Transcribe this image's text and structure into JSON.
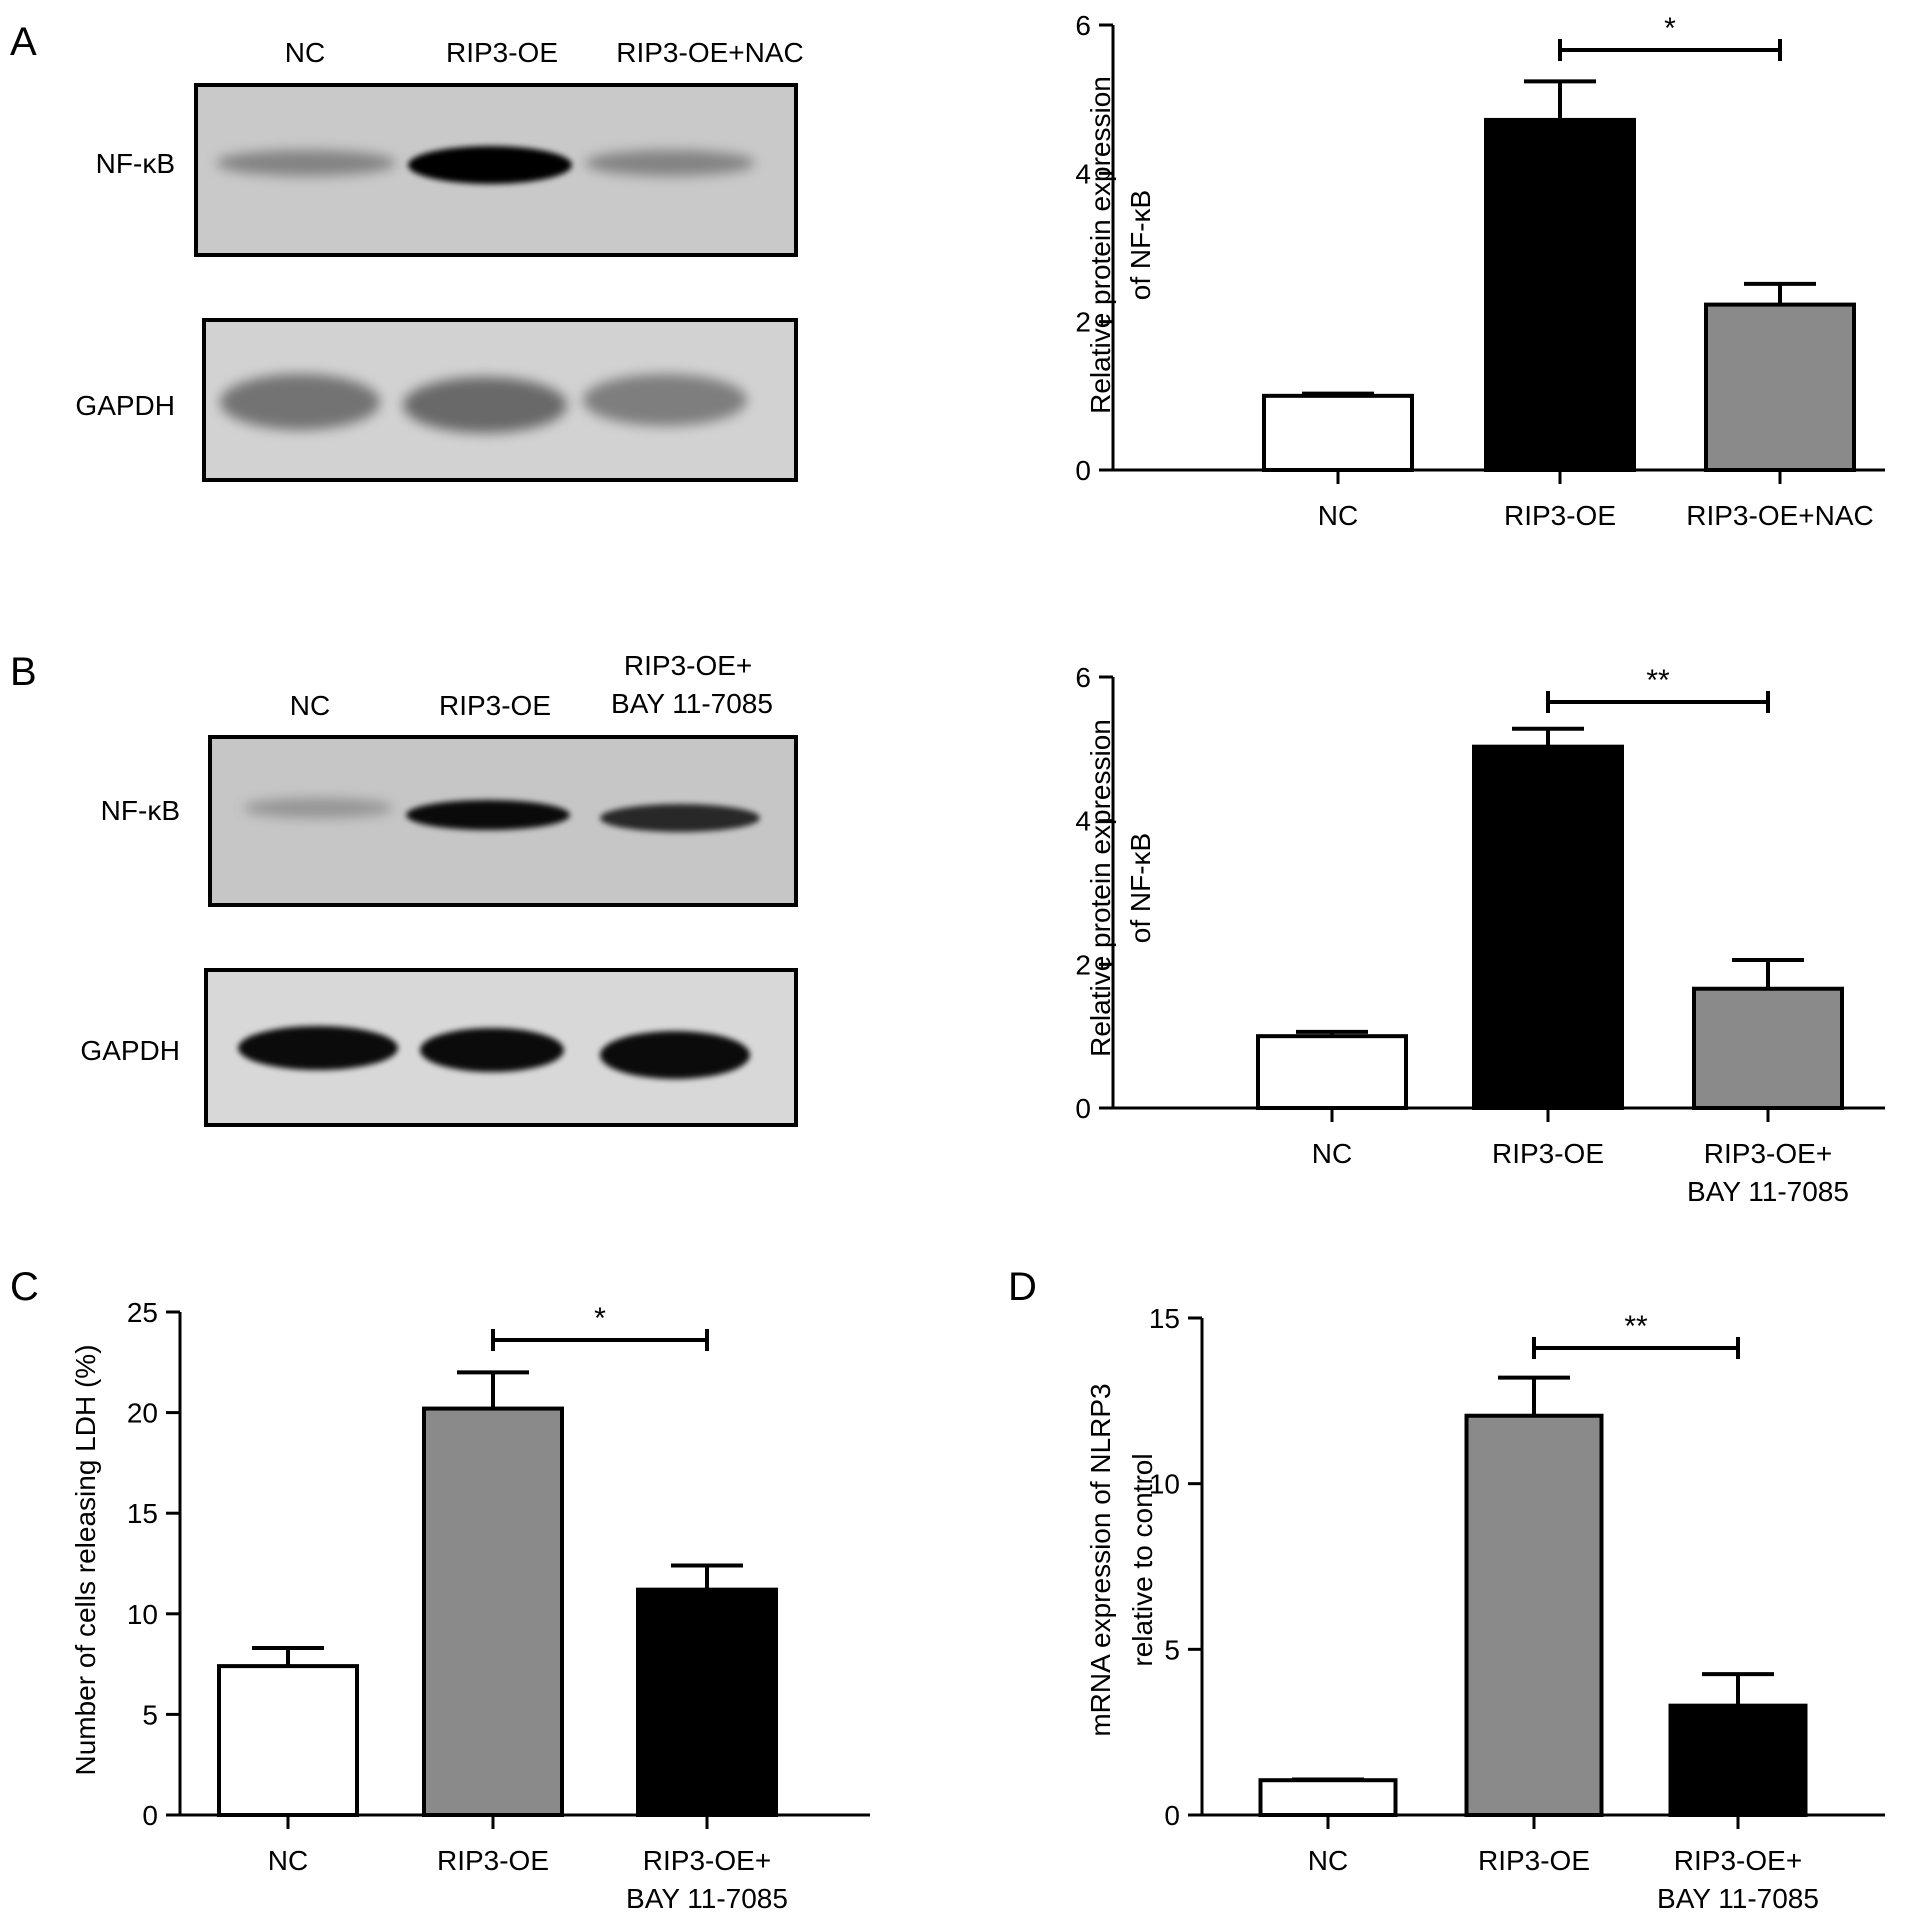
{
  "panels": {
    "A": {
      "label": "A",
      "blot": {
        "lanes": [
          "NC",
          "RIP3-OE",
          "RIP3-OE+NAC"
        ],
        "rows": [
          {
            "name": "NF-κB",
            "intensity": [
              0.35,
              1.0,
              0.35
            ]
          },
          {
            "name": "GAPDH",
            "intensity": [
              0.75,
              0.8,
              0.65
            ]
          }
        ]
      }
    },
    "B": {
      "label": "B",
      "blot": {
        "lanes": [
          "NC",
          "RIP3-OE",
          "RIP3-OE+\nBAY 11-7085"
        ],
        "rows": [
          {
            "name": "NF-κB",
            "intensity": [
              0.25,
              0.95,
              0.8
            ]
          },
          {
            "name": "GAPDH",
            "intensity": [
              0.95,
              0.95,
              0.95
            ]
          }
        ]
      }
    },
    "C": {
      "label": "C"
    },
    "D": {
      "label": "D"
    }
  },
  "chart_data": [
    {
      "id": "A-chart",
      "type": "bar",
      "categories": [
        "NC",
        "RIP3-OE",
        "RIP3-OE+NAC"
      ],
      "values": [
        1.0,
        4.72,
        2.23
      ],
      "errors": [
        0.03,
        0.52,
        0.28
      ],
      "colors": [
        "#ffffff",
        "#000000",
        "#8a8a8a"
      ],
      "ylabel": [
        "Relative protein expression",
        "of NF-κB"
      ],
      "ylim": [
        0,
        6
      ],
      "yticks": [
        0,
        2,
        4,
        6
      ],
      "significance": [
        {
          "from": 1,
          "to": 2,
          "label": "*"
        }
      ]
    },
    {
      "id": "B-chart",
      "type": "bar",
      "categories": [
        "NC",
        "RIP3-OE",
        "RIP3-OE+\nBAY 11-7085"
      ],
      "values": [
        1.0,
        5.03,
        1.66
      ],
      "errors": [
        0.06,
        0.25,
        0.4
      ],
      "colors": [
        "#ffffff",
        "#000000",
        "#8a8a8a"
      ],
      "ylabel": [
        "Relative protein expression",
        "of NF-κB"
      ],
      "ylim": [
        0,
        6
      ],
      "yticks": [
        0,
        2,
        4,
        6
      ],
      "significance": [
        {
          "from": 1,
          "to": 2,
          "label": "**"
        }
      ]
    },
    {
      "id": "C-chart",
      "type": "bar",
      "categories": [
        "NC",
        "RIP3-OE",
        "RIP3-OE+\nBAY 11-7085"
      ],
      "values": [
        7.4,
        20.2,
        11.2
      ],
      "errors": [
        0.9,
        1.8,
        1.2
      ],
      "colors": [
        "#ffffff",
        "#8a8a8a",
        "#000000"
      ],
      "ylabel": [
        "Number of cells releasing LDH (%)"
      ],
      "ylim": [
        0,
        25
      ],
      "yticks": [
        0,
        5,
        10,
        15,
        20,
        25
      ],
      "significance": [
        {
          "from": 1,
          "to": 2,
          "label": "*"
        }
      ]
    },
    {
      "id": "D-chart",
      "type": "bar",
      "categories": [
        "NC",
        "RIP3-OE",
        "RIP3-OE+\nBAY 11-7085"
      ],
      "values": [
        1.05,
        12.05,
        3.3
      ],
      "errors": [
        0.02,
        1.15,
        0.95
      ],
      "colors": [
        "#ffffff",
        "#8a8a8a",
        "#000000"
      ],
      "ylabel": [
        "mRNA expression of NLRP3",
        "relative to control"
      ],
      "ylim": [
        0,
        15
      ],
      "yticks": [
        0,
        5,
        10,
        15
      ],
      "significance": [
        {
          "from": 1,
          "to": 2,
          "label": "**"
        }
      ]
    }
  ]
}
